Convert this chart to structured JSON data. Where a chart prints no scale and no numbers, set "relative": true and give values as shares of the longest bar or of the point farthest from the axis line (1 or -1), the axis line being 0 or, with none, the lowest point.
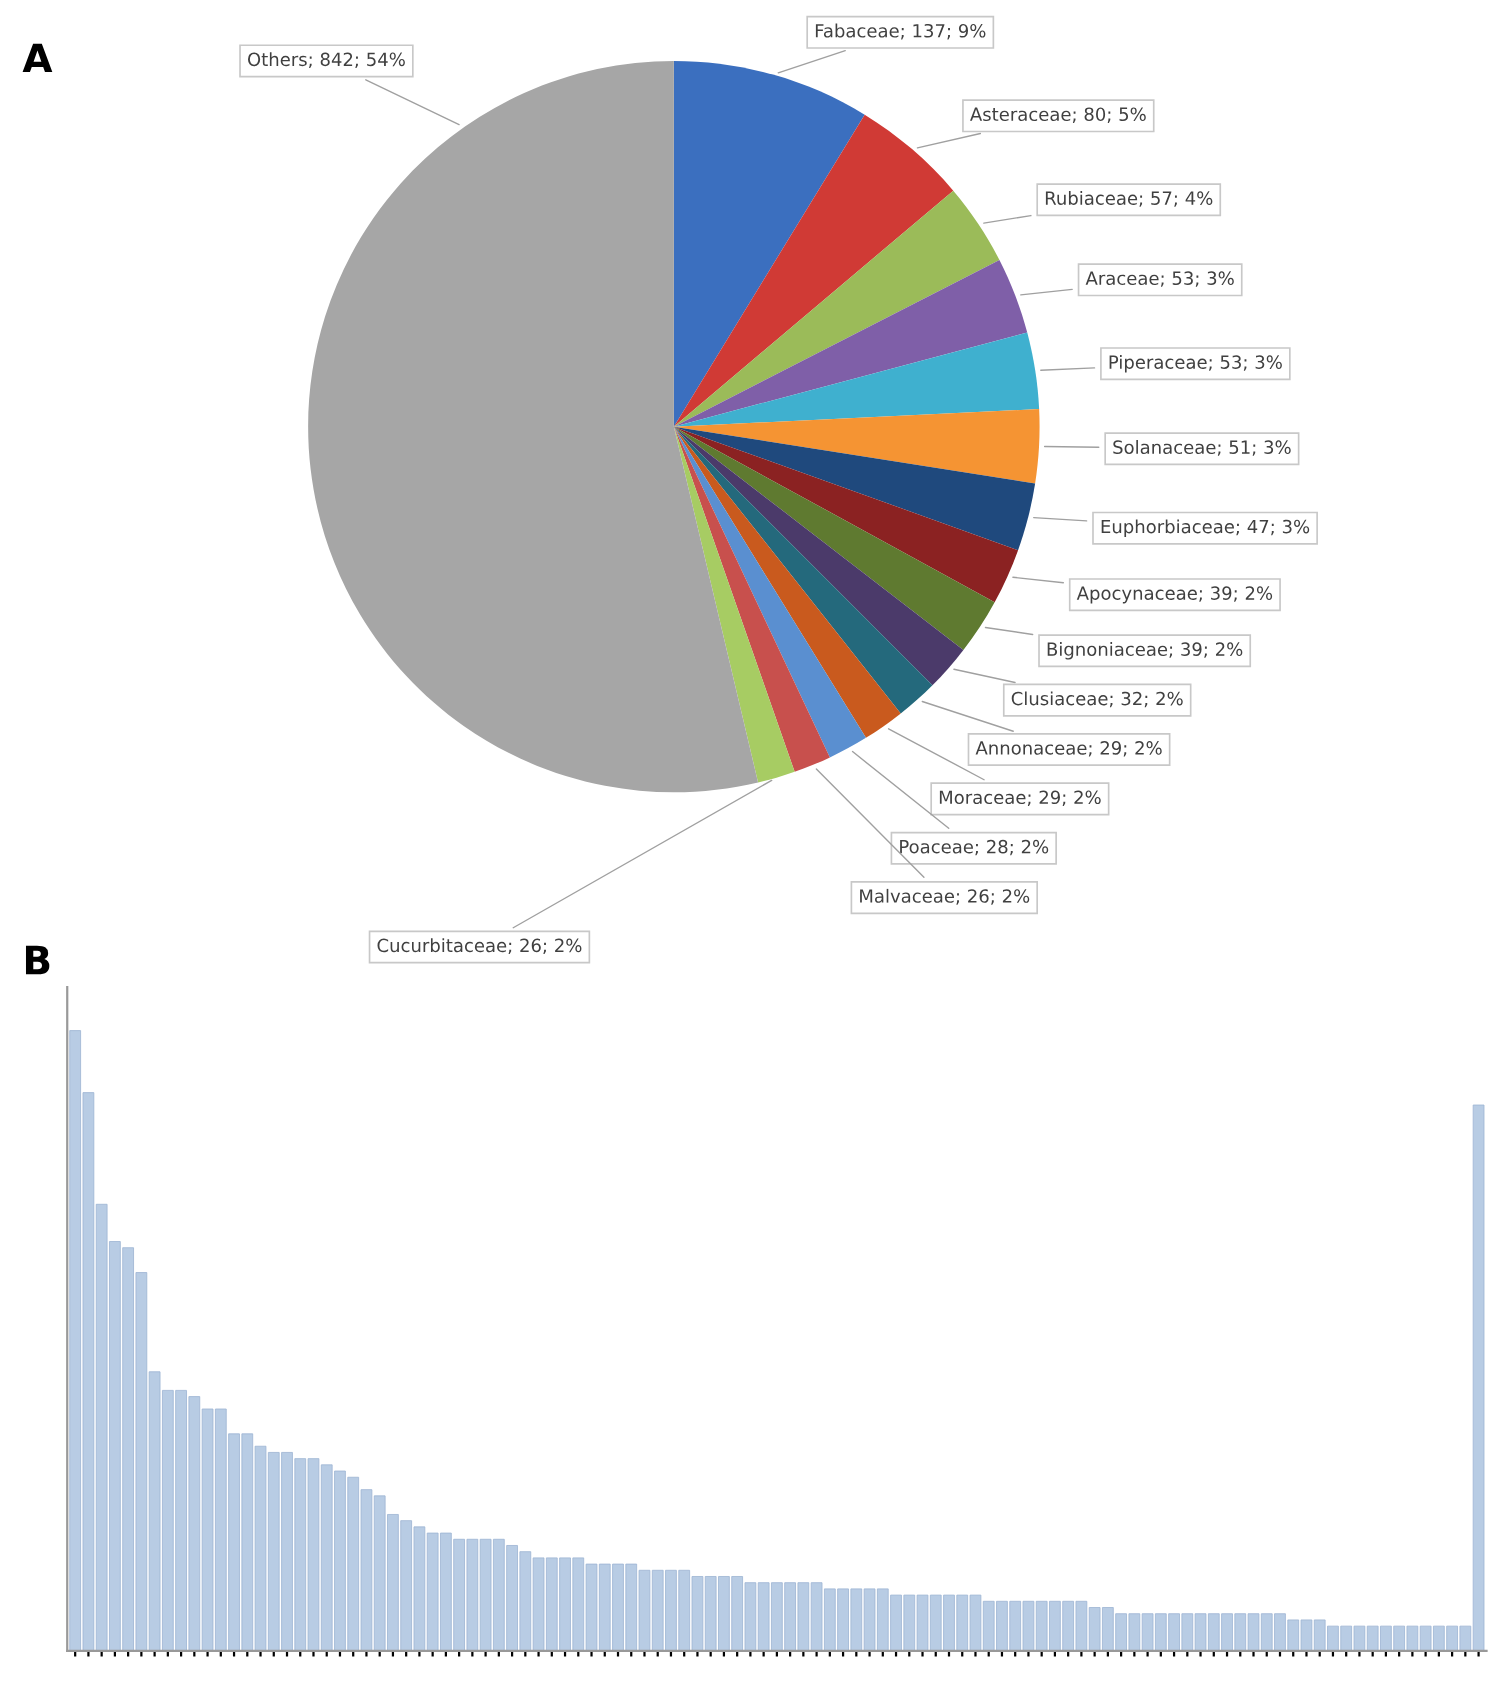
{
  "chart_data": [
    {
      "type": "pie",
      "annotations": [
        "A"
      ],
      "categories": [
        "Fabaceae",
        "Asteraceae",
        "Rubiaceae",
        "Araceae",
        "Piperaceae",
        "Solanaceae",
        "Euphorbiaceae",
        "Apocynaceae",
        "Bignoniaceae",
        "Clusiaceae",
        "Annonaceae",
        "Moraceae",
        "Poaceae",
        "Malvaceae",
        "Cucurbitaceae",
        "Others"
      ],
      "values": [
        137,
        80,
        57,
        53,
        53,
        51,
        47,
        39,
        39,
        32,
        29,
        29,
        28,
        26,
        26,
        842
      ],
      "value_labels": [
        "; 137; 9%",
        "; 80; 5%",
        "; 57; 4%",
        "; 53; 3%",
        "; 53; 3%",
        "; 51; 3%",
        "; 47; 3%",
        "; 39; 2%",
        "; 39; 2%",
        "; 32; 2%",
        "; 29; 2%",
        "; 29; 2%",
        "; 28; 2%",
        "; 26; 2%",
        "; 26; 2%",
        "; 842; 54%"
      ],
      "colors": [
        "#3b6fbf",
        "#d03a35",
        "#9bbb59",
        "#7f5fa8",
        "#3fb0cf",
        "#f59433",
        "#1f497d",
        "#8b2222",
        "#5f7a30",
        "#4b3a6a",
        "#24697c",
        "#c95a1e",
        "#5a8fd0",
        "#c8504d",
        "#a7cc63",
        "#a6a6a6"
      ]
    },
    {
      "type": "bar",
      "annotations": [
        "B"
      ],
      "relative": true,
      "color": "#b8cce4",
      "grid": false,
      "categories": [
        null,
        null,
        null,
        null,
        null,
        null,
        null,
        null,
        null,
        null,
        null,
        null,
        null,
        null,
        null,
        null,
        null,
        null,
        null,
        null,
        null,
        null,
        null,
        null,
        null,
        null,
        null,
        null,
        null,
        null,
        null,
        null,
        null,
        null,
        null,
        null,
        null,
        null,
        null,
        null,
        null,
        null,
        null,
        null,
        null,
        null,
        null,
        null,
        null,
        null,
        null,
        null,
        null,
        null,
        null,
        null,
        null,
        null,
        null,
        null,
        null,
        null,
        null,
        null,
        null,
        null,
        null,
        null,
        null,
        null,
        null,
        null,
        null,
        null,
        null,
        null,
        null,
        null,
        null,
        null,
        null,
        null,
        null,
        null,
        null,
        null,
        null,
        null,
        null,
        null,
        null,
        null,
        null,
        null,
        null,
        null,
        null,
        null,
        null,
        null,
        null,
        null,
        null,
        null,
        null,
        null,
        null
      ],
      "values": [
        1.0,
        0.9,
        0.72,
        0.66,
        0.65,
        0.61,
        0.45,
        0.42,
        0.42,
        0.41,
        0.39,
        0.39,
        0.35,
        0.35,
        0.33,
        0.32,
        0.32,
        0.31,
        0.31,
        0.3,
        0.29,
        0.28,
        0.26,
        0.25,
        0.22,
        0.21,
        0.2,
        0.19,
        0.19,
        0.18,
        0.18,
        0.18,
        0.18,
        0.17,
        0.16,
        0.15,
        0.15,
        0.15,
        0.15,
        0.14,
        0.14,
        0.14,
        0.14,
        0.13,
        0.13,
        0.13,
        0.13,
        0.12,
        0.12,
        0.12,
        0.12,
        0.11,
        0.11,
        0.11,
        0.11,
        0.11,
        0.11,
        0.1,
        0.1,
        0.1,
        0.1,
        0.1,
        0.09,
        0.09,
        0.09,
        0.09,
        0.09,
        0.09,
        0.09,
        0.08,
        0.08,
        0.08,
        0.08,
        0.08,
        0.08,
        0.08,
        0.08,
        0.07,
        0.07,
        0.06,
        0.06,
        0.06,
        0.06,
        0.06,
        0.06,
        0.06,
        0.06,
        0.06,
        0.06,
        0.06,
        0.06,
        0.06,
        0.05,
        0.05,
        0.05,
        0.04,
        0.04,
        0.04,
        0.04,
        0.04,
        0.04,
        0.04,
        0.04,
        0.04,
        0.04,
        0.04,
        0.88
      ]
    }
  ]
}
